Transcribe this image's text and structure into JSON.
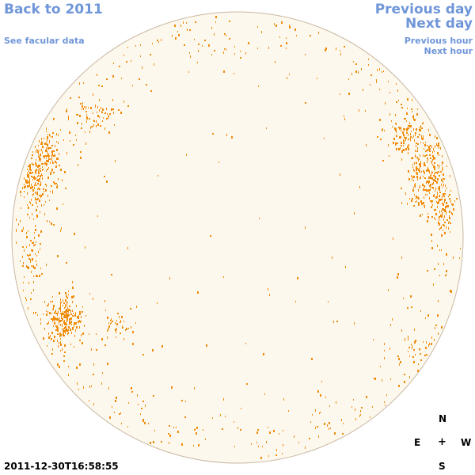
{
  "nav": {
    "back": "Back to 2011",
    "facular": "See facular data",
    "previous_day": "Previous day",
    "next_day": "Next day",
    "previous_hour": "Previous hour",
    "next_hour": "Next hour"
  },
  "compass": {
    "north": "N",
    "east": "E",
    "center": "+",
    "west": "W",
    "south": "S"
  },
  "timestamp": "2011-12-30T16:58:55",
  "colors": {
    "disk_fill": "#fdf8ed",
    "disk_edge": "#c9b8a3",
    "facula": "#f08c0c",
    "link": "#6f96d8"
  },
  "image": {
    "type": "solar-disk-facular-map",
    "feature_color": "orange"
  }
}
